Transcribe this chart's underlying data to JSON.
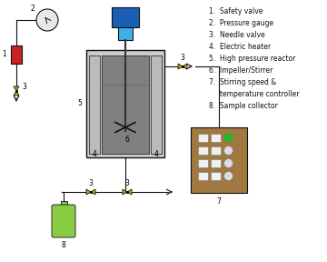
{
  "bg_color": "#ffffff",
  "reactor_color": "#cccccc",
  "heater_color": "#bbbbbb",
  "inner_color": "#808080",
  "motor_top_color": "#1a5fb4",
  "motor_bot_color": "#3daee9",
  "shaft_color": "#333333",
  "safety_valve_color": "#cc2222",
  "needle_valve_color": "#ccaa00",
  "gauge_color": "#e8e8e8",
  "gauge_border": "#888888",
  "controller_color": "#a07840",
  "collector_color": "#88cc44",
  "line_color": "#111111",
  "green_dot_color": "#22bb22",
  "legend": [
    "1.  Safety valve",
    "2.  Pressure gauge",
    "3.  Needle valve",
    "4.  Electric heater",
    "5.  High pressure reactor",
    "6.  Impeller/Stirrer",
    "7.  Stirring speed &",
    "     temperature controller",
    "8.  Sample collector"
  ]
}
